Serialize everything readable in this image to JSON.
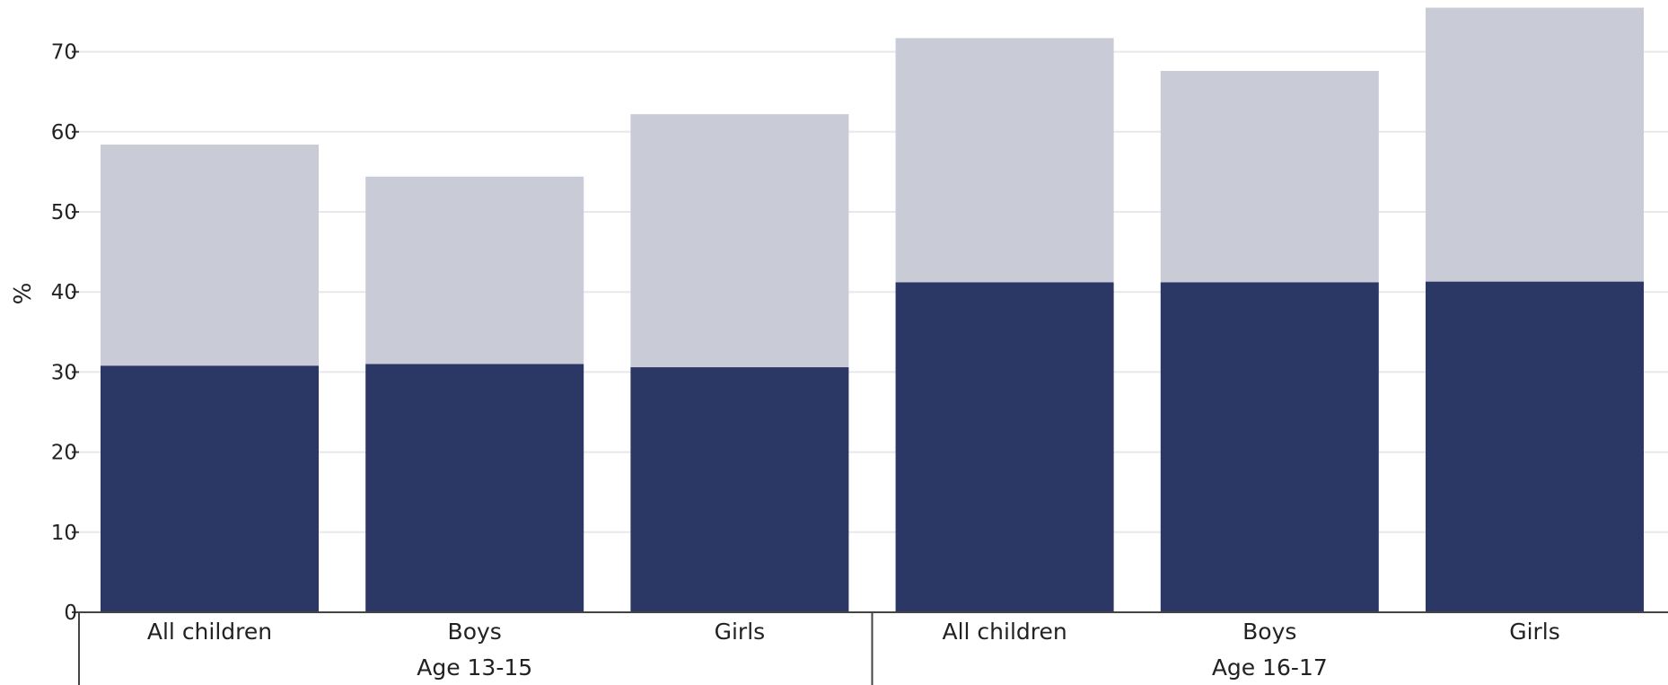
{
  "chart_data": {
    "type": "bar",
    "stacked": true,
    "ylabel": "%",
    "xlabel": "",
    "ylim": [
      0,
      75
    ],
    "yticks": [
      0,
      10,
      20,
      30,
      40,
      50,
      60,
      70
    ],
    "grid": true,
    "groups": [
      "Age 13-15",
      "Age 16-17"
    ],
    "categories": [
      "All children",
      "Boys",
      "Girls",
      "All children",
      "Boys",
      "Girls"
    ],
    "category_groups": [
      0,
      0,
      0,
      1,
      1,
      1
    ],
    "series": [
      {
        "color": "#2b3765",
        "values": [
          30.8,
          31.0,
          30.6,
          41.2,
          41.2,
          41.3
        ]
      },
      {
        "color": "#c9cbd7",
        "values": [
          27.6,
          23.4,
          31.6,
          30.5,
          26.4,
          34.2
        ]
      }
    ]
  }
}
